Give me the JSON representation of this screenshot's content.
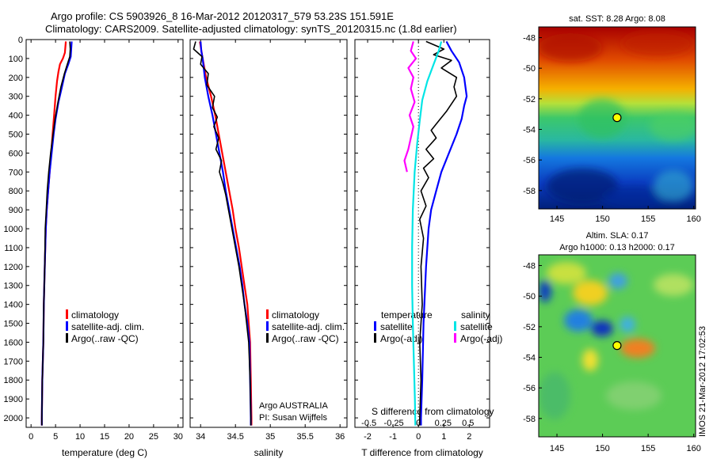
{
  "header": {
    "line1": "Argo profile: CS 5903926_8 16-Mar-2012 20120317_579 53.23S 151.591E",
    "line2": "Climatology: CARS2009. Satellite-adjusted climatology: synTS_20120315.nc (1.8d earlier)"
  },
  "colors": {
    "climatology": "#ff0000",
    "satellite": "#0000ff",
    "argo": "#000000",
    "salinity_satellite": "#00e5e5",
    "salinity_argo": "#ff00ff",
    "marker": "#ffff00"
  },
  "chart_data": [
    {
      "type": "line",
      "id": "temperature",
      "xlabel": "temperature (deg C)",
      "ylim": [
        2050,
        0
      ],
      "xlim": [
        -1,
        31
      ],
      "xticks": [
        "0",
        "5",
        "10",
        "15",
        "20",
        "25",
        "30"
      ],
      "xtick_values": [
        0,
        5,
        10,
        15,
        20,
        25,
        30
      ],
      "yticks": [
        "0",
        "100",
        "200",
        "300",
        "400",
        "500",
        "600",
        "700",
        "800",
        "900",
        "1000",
        "1100",
        "1200",
        "1300",
        "1400",
        "1500",
        "1600",
        "1700",
        "1800",
        "1900",
        "2000"
      ],
      "ytick_values": [
        0,
        100,
        200,
        300,
        400,
        500,
        600,
        700,
        800,
        900,
        1000,
        1100,
        1200,
        1300,
        1400,
        1500,
        1600,
        1700,
        1800,
        1900,
        2000
      ],
      "legend": [
        "climatology",
        "satellite-adj. clim.",
        "Argo(..raw -QC)"
      ],
      "series": [
        {
          "name": "climatology",
          "color_key": "climatology",
          "points": [
            [
              7.1,
              10
            ],
            [
              7.0,
              40
            ],
            [
              6.9,
              70
            ],
            [
              6.5,
              100
            ],
            [
              5.9,
              130
            ],
            [
              5.6,
              170
            ],
            [
              5.3,
              220
            ],
            [
              5.0,
              300
            ],
            [
              4.7,
              400
            ],
            [
              4.4,
              500
            ],
            [
              4.1,
              600
            ],
            [
              3.8,
              700
            ],
            [
              3.5,
              800
            ],
            [
              3.2,
              900
            ],
            [
              3.0,
              1000
            ],
            [
              2.8,
              1200
            ],
            [
              2.6,
              1400
            ],
            [
              2.5,
              1600
            ],
            [
              2.3,
              1800
            ],
            [
              2.2,
              2000
            ],
            [
              2.2,
              2040
            ]
          ]
        },
        {
          "name": "satellite-adj. clim.",
          "color_key": "satellite",
          "points": [
            [
              8.3,
              10
            ],
            [
              8.2,
              50
            ],
            [
              8.1,
              90
            ],
            [
              7.6,
              130
            ],
            [
              6.9,
              180
            ],
            [
              6.3,
              250
            ],
            [
              5.6,
              330
            ],
            [
              5.0,
              420
            ],
            [
              4.6,
              500
            ],
            [
              4.2,
              600
            ],
            [
              3.8,
              700
            ],
            [
              3.5,
              800
            ],
            [
              3.2,
              900
            ],
            [
              3.0,
              1000
            ],
            [
              2.8,
              1200
            ],
            [
              2.6,
              1400
            ],
            [
              2.5,
              1600
            ],
            [
              2.3,
              1800
            ],
            [
              2.2,
              2000
            ],
            [
              2.2,
              2040
            ]
          ]
        },
        {
          "name": "Argo(..raw -QC)",
          "color_key": "argo",
          "points": [
            [
              7.9,
              10
            ],
            [
              8.0,
              50
            ],
            [
              7.9,
              90
            ],
            [
              7.4,
              130
            ],
            [
              6.8,
              180
            ],
            [
              6.1,
              250
            ],
            [
              5.5,
              330
            ],
            [
              4.9,
              420
            ],
            [
              4.5,
              500
            ],
            [
              4.0,
              600
            ],
            [
              3.6,
              700
            ],
            [
              3.3,
              800
            ],
            [
              3.1,
              900
            ],
            [
              2.9,
              1000
            ],
            [
              2.8,
              1200
            ],
            [
              2.6,
              1400
            ],
            [
              2.5,
              1600
            ],
            [
              2.3,
              1800
            ],
            [
              2.2,
              2000
            ],
            [
              2.2,
              2040
            ]
          ]
        }
      ]
    },
    {
      "type": "line",
      "id": "salinity",
      "xlabel": "salinity",
      "ylim": [
        2050,
        0
      ],
      "xlim": [
        33.85,
        36.1
      ],
      "xticks": [
        "34",
        "34.5",
        "35",
        "35.5",
        "36"
      ],
      "xtick_values": [
        34,
        34.5,
        35,
        35.5,
        36
      ],
      "legend": [
        "climatology",
        "satellite-adj. clim.",
        "Argo(..raw -QC)"
      ],
      "annotation": [
        "Argo AUSTRALIA",
        "PI: Susan Wijffels"
      ],
      "series": [
        {
          "name": "climatology",
          "color_key": "climatology",
          "points": [
            [
              33.99,
              10
            ],
            [
              34.03,
              100
            ],
            [
              34.08,
              200
            ],
            [
              34.15,
              300
            ],
            [
              34.21,
              400
            ],
            [
              34.26,
              500
            ],
            [
              34.31,
              600
            ],
            [
              34.36,
              700
            ],
            [
              34.41,
              800
            ],
            [
              34.46,
              900
            ],
            [
              34.5,
              1000
            ],
            [
              34.55,
              1100
            ],
            [
              34.59,
              1200
            ],
            [
              34.63,
              1300
            ],
            [
              34.67,
              1400
            ],
            [
              34.69,
              1500
            ],
            [
              34.71,
              1600
            ],
            [
              34.72,
              1800
            ],
            [
              34.73,
              2000
            ],
            [
              34.73,
              2040
            ]
          ]
        },
        {
          "name": "satellite-adj. clim.",
          "color_key": "satellite",
          "points": [
            [
              34.0,
              10
            ],
            [
              34.01,
              60
            ],
            [
              34.03,
              100
            ],
            [
              34.06,
              200
            ],
            [
              34.11,
              300
            ],
            [
              34.17,
              400
            ],
            [
              34.22,
              500
            ],
            [
              34.27,
              600
            ],
            [
              34.32,
              700
            ],
            [
              34.36,
              800
            ],
            [
              34.41,
              900
            ],
            [
              34.46,
              1000
            ],
            [
              34.51,
              1100
            ],
            [
              34.56,
              1200
            ],
            [
              34.6,
              1300
            ],
            [
              34.63,
              1400
            ],
            [
              34.67,
              1500
            ],
            [
              34.7,
              1600
            ],
            [
              34.71,
              1800
            ],
            [
              34.72,
              2000
            ],
            [
              34.72,
              2040
            ]
          ]
        },
        {
          "name": "Argo(..raw -QC)",
          "color_key": "argo",
          "points": [
            [
              33.93,
              10
            ],
            [
              33.9,
              50
            ],
            [
              34.02,
              90
            ],
            [
              34.0,
              130
            ],
            [
              34.11,
              180
            ],
            [
              34.09,
              240
            ],
            [
              34.2,
              300
            ],
            [
              34.17,
              360
            ],
            [
              34.24,
              410
            ],
            [
              34.19,
              460
            ],
            [
              34.26,
              520
            ],
            [
              34.22,
              580
            ],
            [
              34.3,
              640
            ],
            [
              34.27,
              700
            ],
            [
              34.32,
              760
            ],
            [
              34.36,
              820
            ],
            [
              34.4,
              900
            ],
            [
              34.45,
              1000
            ],
            [
              34.5,
              1100
            ],
            [
              34.55,
              1200
            ],
            [
              34.59,
              1300
            ],
            [
              34.63,
              1400
            ],
            [
              34.66,
              1500
            ],
            [
              34.69,
              1600
            ],
            [
              34.71,
              1800
            ],
            [
              34.72,
              2000
            ],
            [
              34.72,
              2040
            ]
          ]
        }
      ]
    },
    {
      "type": "line",
      "id": "differences",
      "xlabel": "T difference from climatology",
      "xlabel_top": "S difference from climatology",
      "ylim": [
        2050,
        0
      ],
      "xlim": [
        -2.5,
        2.8
      ],
      "xticks": [
        "-2",
        "-1",
        "0",
        "1",
        "2"
      ],
      "xtick_values": [
        -2,
        -1,
        0,
        1,
        2
      ],
      "s_xticks": [
        "-0.5",
        "-0.25",
        "0",
        "0.25",
        "0.5"
      ],
      "s_xtick_values": [
        -1.95,
        -0.97,
        0,
        0.97,
        1.95
      ],
      "legend_headers": [
        "temperature",
        "salinity"
      ],
      "legend": [
        "satellite",
        "Argo(-adj)",
        "satellite",
        "Argo(-adj)"
      ],
      "series": [
        {
          "name": "satellite",
          "color_key": "satellite",
          "points": [
            [
              1.1,
              10
            ],
            [
              1.3,
              60
            ],
            [
              1.6,
              120
            ],
            [
              1.8,
              200
            ],
            [
              1.9,
              300
            ],
            [
              1.8,
              350
            ],
            [
              1.7,
              420
            ],
            [
              1.5,
              500
            ],
            [
              1.2,
              600
            ],
            [
              0.9,
              700
            ],
            [
              0.7,
              800
            ],
            [
              0.5,
              900
            ],
            [
              0.4,
              1000
            ],
            [
              0.3,
              1200
            ],
            [
              0.2,
              1500
            ],
            [
              0.15,
              1800
            ],
            [
              0.1,
              2000
            ],
            [
              0.1,
              2040
            ]
          ]
        },
        {
          "name": "Argo(-adj)",
          "color_key": "argo",
          "points": [
            [
              0.3,
              10
            ],
            [
              1.0,
              50
            ],
            [
              0.6,
              80
            ],
            [
              1.3,
              110
            ],
            [
              0.9,
              150
            ],
            [
              1.5,
              200
            ],
            [
              1.4,
              250
            ],
            [
              1.5,
              300
            ],
            [
              1.1,
              380
            ],
            [
              0.8,
              430
            ],
            [
              0.5,
              480
            ],
            [
              0.7,
              520
            ],
            [
              0.3,
              580
            ],
            [
              0.6,
              630
            ],
            [
              0.2,
              680
            ],
            [
              0.4,
              730
            ],
            [
              0.1,
              800
            ],
            [
              0.3,
              880
            ],
            [
              0.05,
              950
            ],
            [
              0.2,
              1050
            ],
            [
              0.1,
              1200
            ],
            [
              0.15,
              1400
            ],
            [
              0.05,
              1600
            ],
            [
              0.1,
              1800
            ],
            [
              0.05,
              2000
            ],
            [
              0.05,
              2040
            ]
          ]
        },
        {
          "name": "satellite",
          "color_key": "salinity_satellite",
          "points": [
            [
              0.9,
              10
            ],
            [
              0.8,
              60
            ],
            [
              0.6,
              130
            ],
            [
              0.35,
              220
            ],
            [
              0.15,
              320
            ],
            [
              0.05,
              430
            ],
            [
              -0.05,
              550
            ],
            [
              -0.15,
              700
            ],
            [
              -0.22,
              900
            ],
            [
              -0.25,
              1100
            ],
            [
              -0.25,
              1300
            ],
            [
              -0.22,
              1500
            ],
            [
              -0.18,
              1700
            ],
            [
              -0.14,
              1900
            ],
            [
              -0.12,
              2040
            ]
          ]
        },
        {
          "name": "Argo(-adj)",
          "color_key": "salinity_argo",
          "points": [
            [
              -0.2,
              10
            ],
            [
              -0.3,
              60
            ],
            [
              -0.1,
              100
            ],
            [
              -0.4,
              150
            ],
            [
              -0.2,
              200
            ],
            [
              -0.3,
              260
            ],
            [
              -0.15,
              330
            ],
            [
              -0.35,
              400
            ],
            [
              -0.2,
              460
            ],
            [
              -0.3,
              520
            ],
            [
              -0.4,
              580
            ],
            [
              -0.55,
              640
            ],
            [
              -0.45,
              700
            ]
          ]
        }
      ]
    },
    {
      "type": "heatmap",
      "id": "sst-map",
      "title": "sat. SST: 8.28 Argo: 8.08",
      "xlim": [
        143,
        160.2
      ],
      "ylim": [
        -59.2,
        -47.3
      ],
      "xticks": [
        "145",
        "150",
        "155",
        "160"
      ],
      "xtick_values": [
        145,
        150,
        155,
        160
      ],
      "yticks": [
        "-48",
        "-50",
        "-52",
        "-54",
        "-56",
        "-58"
      ],
      "ytick_values": [
        -48,
        -50,
        -52,
        -54,
        -56,
        -58
      ],
      "marker": [
        151.59,
        -53.23
      ]
    },
    {
      "type": "heatmap",
      "id": "sla-map",
      "title_line1": "Altim. SLA: 0.17",
      "title_line2": "Argo h1000: 0.13 h2000: 0.17",
      "side_label": "IMOS 21-Mar-2012 17:02:53",
      "xlim": [
        143,
        160.2
      ],
      "ylim": [
        -59.2,
        -47.3
      ],
      "xticks": [
        "145",
        "150",
        "155",
        "160"
      ],
      "xtick_values": [
        145,
        150,
        155,
        160
      ],
      "yticks": [
        "-48",
        "-50",
        "-52",
        "-54",
        "-56",
        "-58"
      ],
      "ytick_values": [
        -48,
        -50,
        -52,
        -54,
        -56,
        -58
      ],
      "marker": [
        151.59,
        -53.23
      ]
    }
  ]
}
